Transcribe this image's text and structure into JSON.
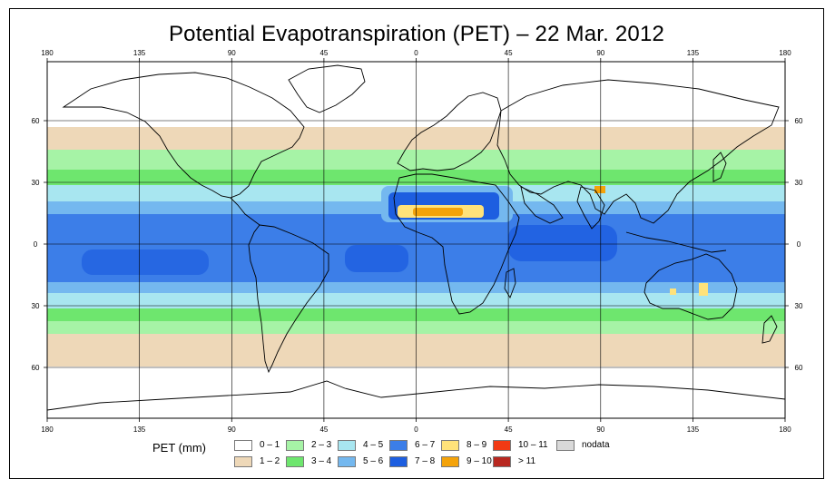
{
  "title": "Potential Evapotranspiration (PET) – 22 Mar. 2012",
  "map": {
    "x_ticks": [
      "180",
      "135",
      "90",
      "45",
      "0",
      "45",
      "90",
      "135",
      "180"
    ],
    "y_ticks": [
      "60",
      "30",
      "0",
      "30",
      "60"
    ],
    "colors": {
      "0-1": "#ffffff",
      "1-2": "#eed8b8",
      "2-3": "#a6f3a6",
      "3-4": "#6ee66e",
      "4-5": "#a8e6f0",
      "5-6": "#74b8ef",
      "6-7": "#3c7ee8",
      "7-8": "#1d5ee0",
      "8-9": "#ffe27a",
      "9-10": "#f4a30a",
      "10-11": "#f23a14",
      ">11": "#b82820",
      "nodata": "#d9d9d9"
    }
  },
  "legend": {
    "title": "PET (mm)",
    "items": [
      {
        "label": "0 – 1",
        "color": "#ffffff"
      },
      {
        "label": "1 – 2",
        "color": "#eed8b8"
      },
      {
        "label": "2 – 3",
        "color": "#a6f3a6"
      },
      {
        "label": "3 – 4",
        "color": "#6ee66e"
      },
      {
        "label": "4 – 5",
        "color": "#a8e6f0"
      },
      {
        "label": "5 – 6",
        "color": "#74b8ef"
      },
      {
        "label": "6 – 7",
        "color": "#3c7ee8"
      },
      {
        "label": "7 – 8",
        "color": "#1d5ee0"
      },
      {
        "label": "8 – 9",
        "color": "#ffe27a"
      },
      {
        "label": "9 – 10",
        "color": "#f4a30a"
      },
      {
        "label": "10 – 11",
        "color": "#f23a14"
      },
      {
        "label": "> 11",
        "color": "#b82820"
      },
      {
        "label": "nodata",
        "color": "#d9d9d9"
      }
    ]
  }
}
